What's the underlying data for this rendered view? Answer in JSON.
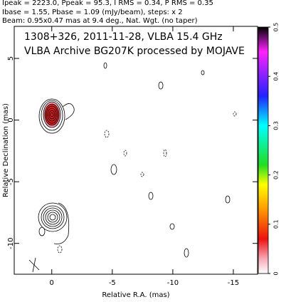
{
  "chart_data": {
    "type": "contour",
    "header": [
      "Ipeak = 2223.0, Ppeak = 95.3, I RMS = 0.34, P RMS = 0.35",
      "Ibase = 1.55, Pbase = 1.09 (mJy/beam), steps: x 2",
      "Beam: 0.95x0.47 mas at 9.4 deg., Nat. Wgt. (no taper)"
    ],
    "annotations": [
      "1308+326, 2011-11-28, VLBA 15.4 GHz",
      "VLBA Archive BG207K processed by MOJAVE"
    ],
    "xlabel": "Relative R.A. (mas)",
    "ylabel": "Relative Declination (mas)",
    "xlim": [
      3.1,
      -17
    ],
    "ylim": [
      -12.5,
      7.6
    ],
    "xticks": [
      0,
      -5,
      -10,
      -15
    ],
    "yticks": [
      5,
      0,
      -5,
      -10
    ],
    "colorbar": {
      "ylim": [
        0,
        0.5
      ],
      "yticks": [
        0,
        0.1,
        0.2,
        0.3,
        0.4,
        0.5
      ]
    }
  }
}
